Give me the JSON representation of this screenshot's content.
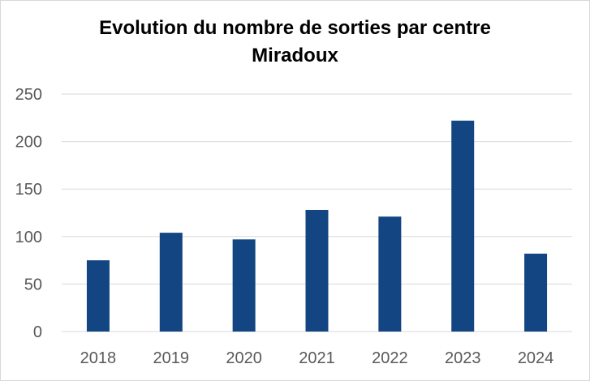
{
  "chart_data": {
    "type": "bar",
    "title": "Evolution du nombre de sorties par centre",
    "subtitle": "Miradoux",
    "categories": [
      "2018",
      "2019",
      "2020",
      "2021",
      "2022",
      "2023",
      "2024"
    ],
    "values": [
      75,
      104,
      97,
      128,
      121,
      222,
      82
    ],
    "ylim": [
      0,
      250
    ],
    "yticks": [
      "0",
      "50",
      "100",
      "150",
      "200",
      "250"
    ],
    "grid": true,
    "legend": "none",
    "bar_color": "#124581",
    "grid_color": "#d9d9d9"
  }
}
